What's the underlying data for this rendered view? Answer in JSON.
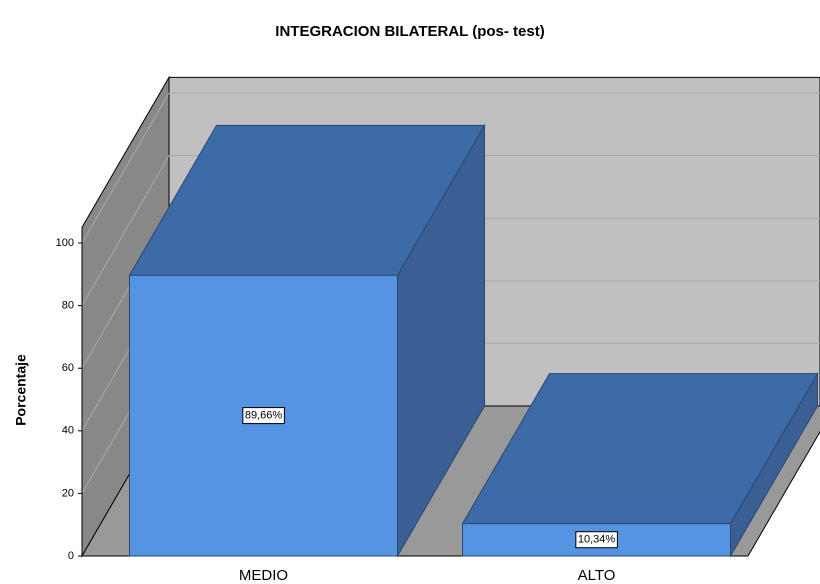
{
  "chart_data": {
    "type": "bar3d",
    "title": "INTEGRACION BILATERAL (pos- test)",
    "y_label": "Porcentaje",
    "categories": [
      "MEDIO",
      "ALTO"
    ],
    "values": [
      89.66,
      10.34
    ],
    "value_labels": [
      "89,66%",
      "10,34%"
    ],
    "color": "#5593e3",
    "ylim": [
      0,
      105
    ],
    "yticks": [
      0,
      20,
      40,
      60,
      80,
      100
    ],
    "grid": true
  }
}
